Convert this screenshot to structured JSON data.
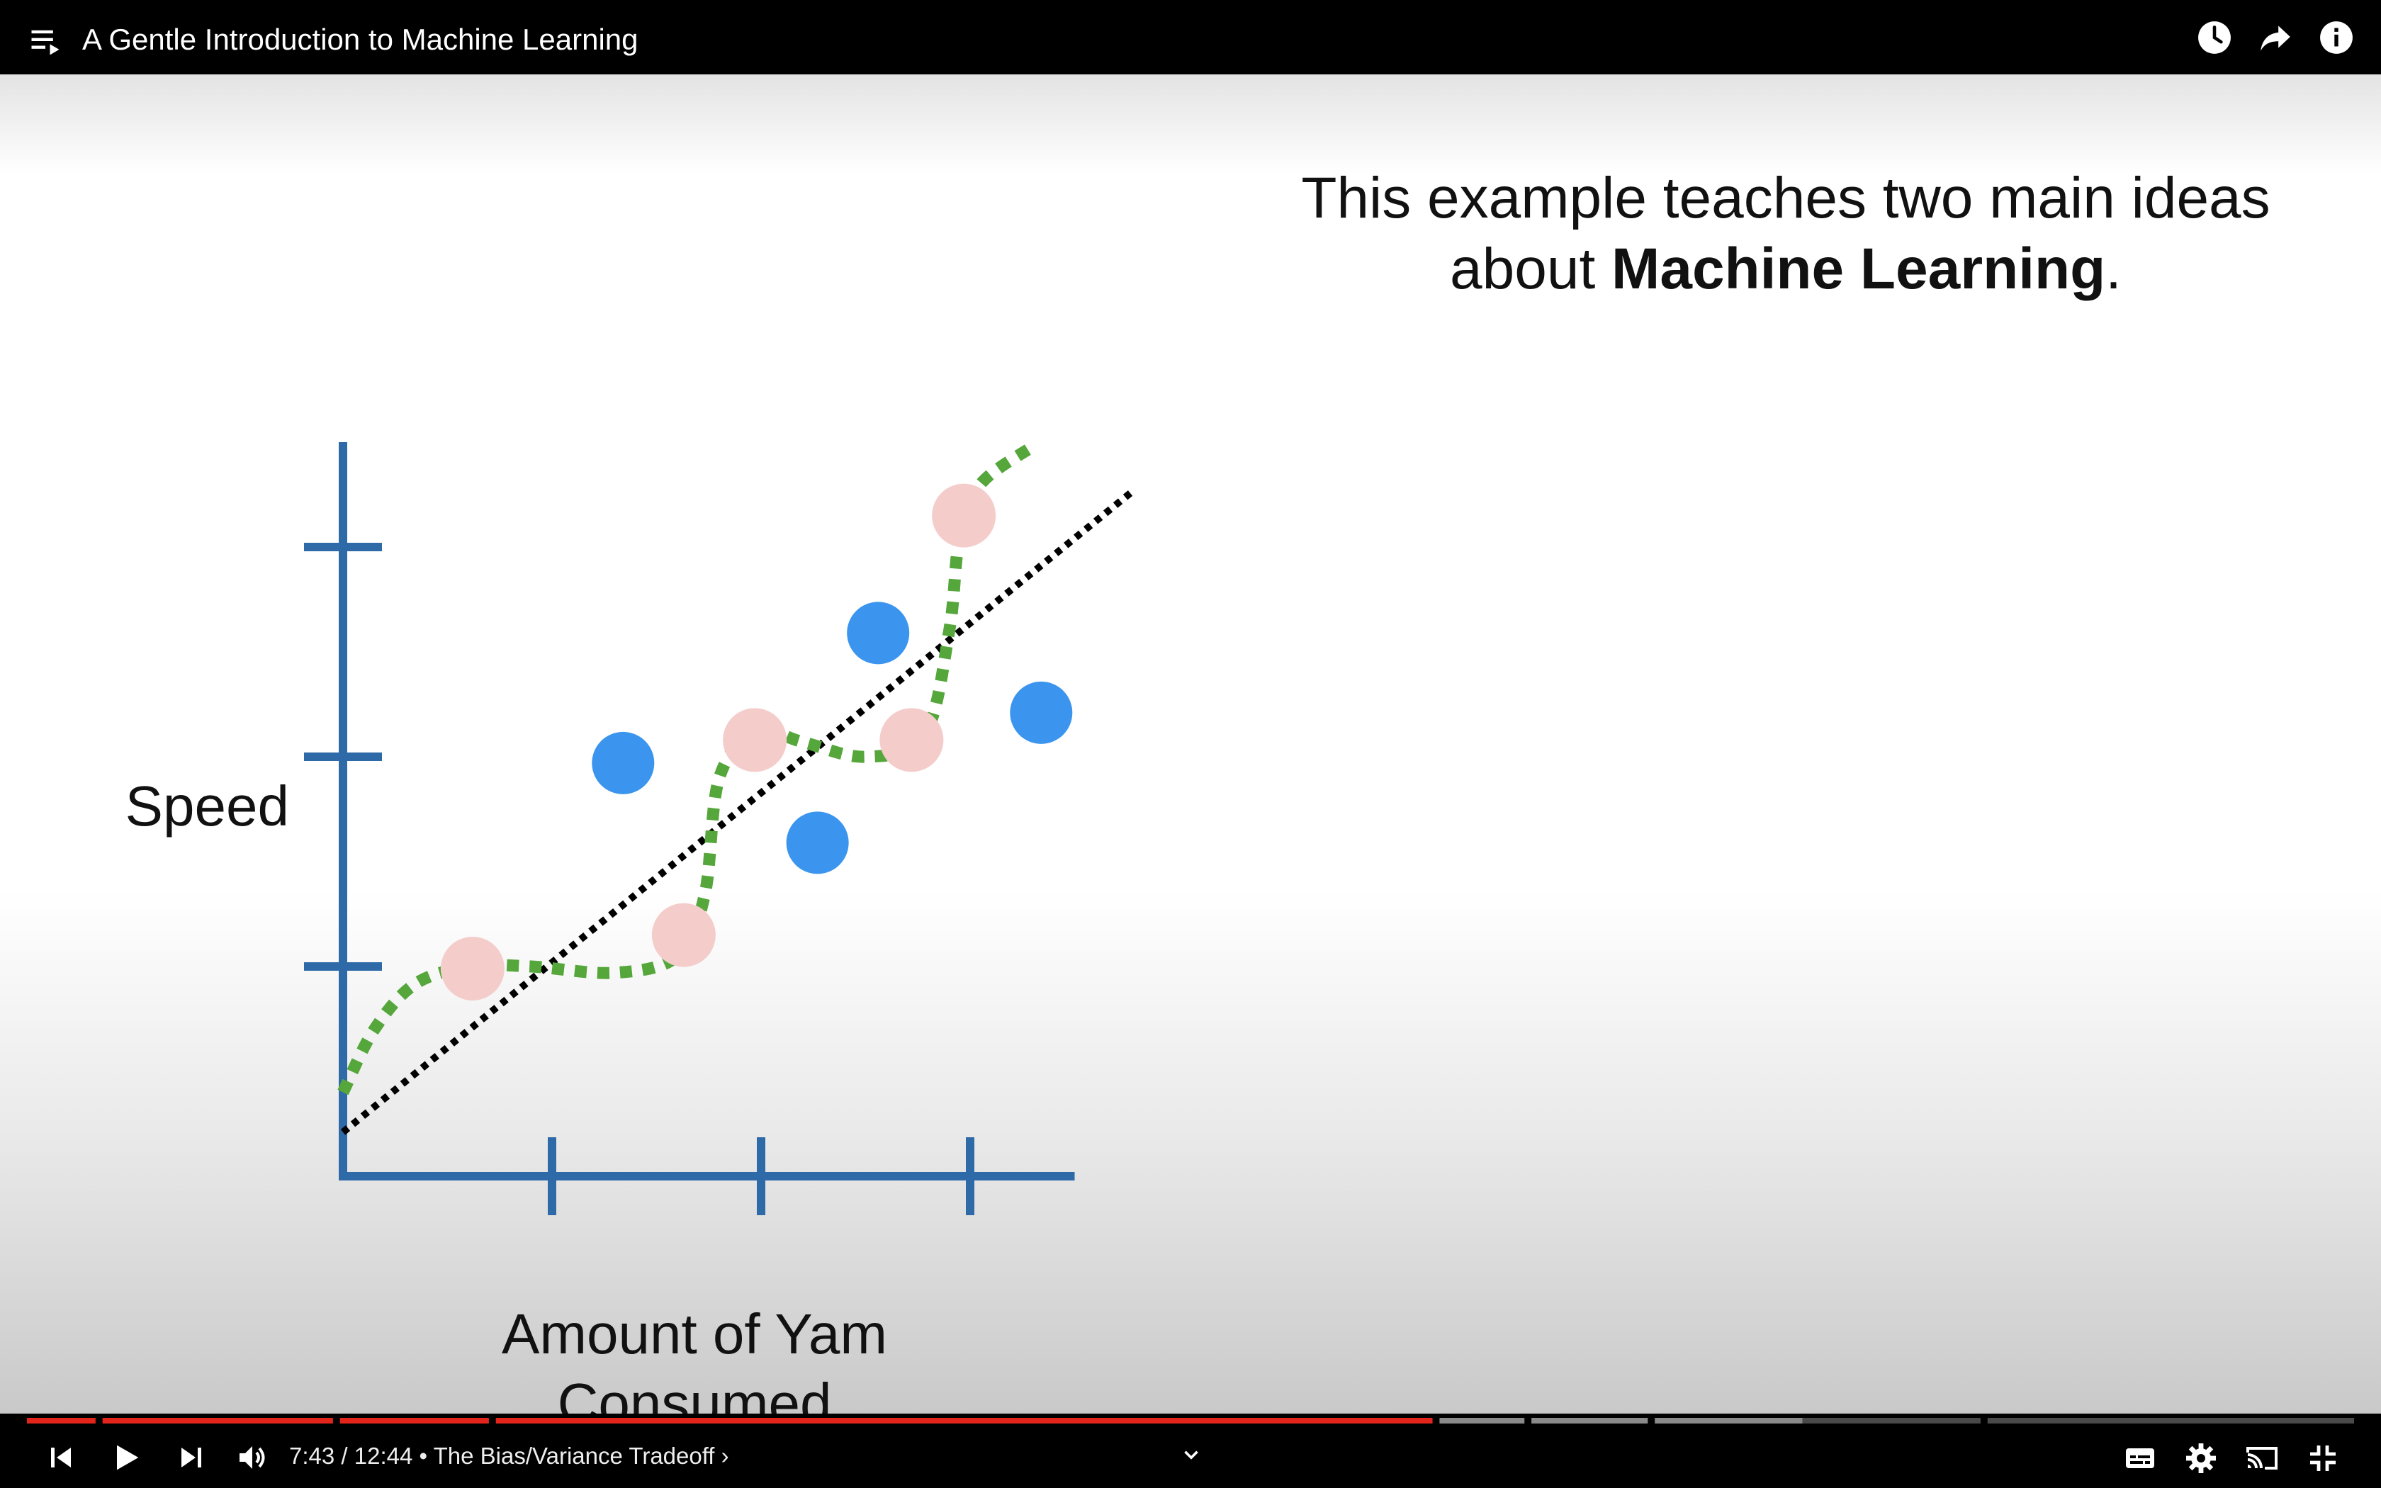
{
  "app": {
    "title": "A Gentle Introduction to Machine Learning",
    "icons": {
      "playlist": "playlist-icon",
      "watch_later": "clock-icon",
      "share": "share-icon",
      "info": "info-icon"
    }
  },
  "slide": {
    "line1": "This example teaches two main ideas",
    "line2_prefix": "about ",
    "line2_bold": "Machine Learning",
    "line2_suffix": "."
  },
  "player": {
    "time_current": "7:43",
    "time_separator": " / ",
    "time_total": "12:44",
    "chapter_separator": " • ",
    "chapter": "The Bias/Variance Tradeoff",
    "chapter_chevron": "›",
    "progress_played_fraction": 0.607,
    "chapter_segments": [
      {
        "start": 0.0,
        "end": 0.0295
      },
      {
        "start": 0.0325,
        "end": 0.1315
      },
      {
        "start": 0.1345,
        "end": 0.1985
      },
      {
        "start": 0.2015,
        "end": 0.604
      },
      {
        "start": 0.607,
        "end": 0.6435
      },
      {
        "start": 0.6465,
        "end": 0.6965
      },
      {
        "start": 0.6995,
        "end": 0.8395
      },
      {
        "start": 0.8425,
        "end": 1.0
      }
    ],
    "buffered_fraction": 0.763,
    "colors": {
      "played": "#e2241b",
      "buffered": "#8a8a8a",
      "unbuffered": "#4a4a4a"
    },
    "controls": [
      "previous-icon",
      "play-icon",
      "next-icon",
      "volume-icon",
      "expand-chevron-icon",
      "subtitles-icon",
      "settings-icon",
      "cast-icon",
      "exit-fullscreen-icon"
    ]
  },
  "chart_data": {
    "type": "scatter",
    "xlabel": "Amount of Yam Consumed",
    "ylabel": "Speed",
    "xlim": [
      0,
      3.5
    ],
    "ylim": [
      0,
      3.5
    ],
    "colors": {
      "axis": "#2f6aa8",
      "training": "#f4cdcb",
      "testing": "#3b95ee",
      "linear_fit": "#000000",
      "squiggle_fit": "#55a63b"
    },
    "series": [
      {
        "points": [
          [
            0.62,
            0.99
          ],
          [
            1.63,
            1.15
          ],
          [
            1.97,
            2.08
          ],
          [
            2.72,
            2.08
          ],
          [
            2.97,
            3.15
          ]
        ]
      },
      {
        "points": [
          [
            1.34,
            1.97
          ],
          [
            2.27,
            1.59
          ],
          [
            2.56,
            2.59
          ],
          [
            3.34,
            2.21
          ]
        ]
      }
    ],
    "linear_fit": {
      "x0": 0.0,
      "y0": 0.21,
      "x1": 3.77,
      "y1": 3.26
    },
    "squiggle_fit": [
      [
        0.0,
        0.4
      ],
      [
        0.15,
        0.7
      ],
      [
        0.35,
        0.92
      ],
      [
        0.62,
        1.0
      ],
      [
        0.9,
        1.0
      ],
      [
        1.3,
        0.97
      ],
      [
        1.6,
        1.05
      ],
      [
        1.73,
        1.34
      ],
      [
        1.8,
        1.9
      ],
      [
        1.98,
        2.12
      ],
      [
        2.2,
        2.07
      ],
      [
        2.5,
        2.0
      ],
      [
        2.78,
        2.1
      ],
      [
        2.9,
        2.6
      ],
      [
        2.95,
        3.05
      ],
      [
        3.05,
        3.3
      ],
      [
        3.3,
        3.48
      ]
    ]
  }
}
